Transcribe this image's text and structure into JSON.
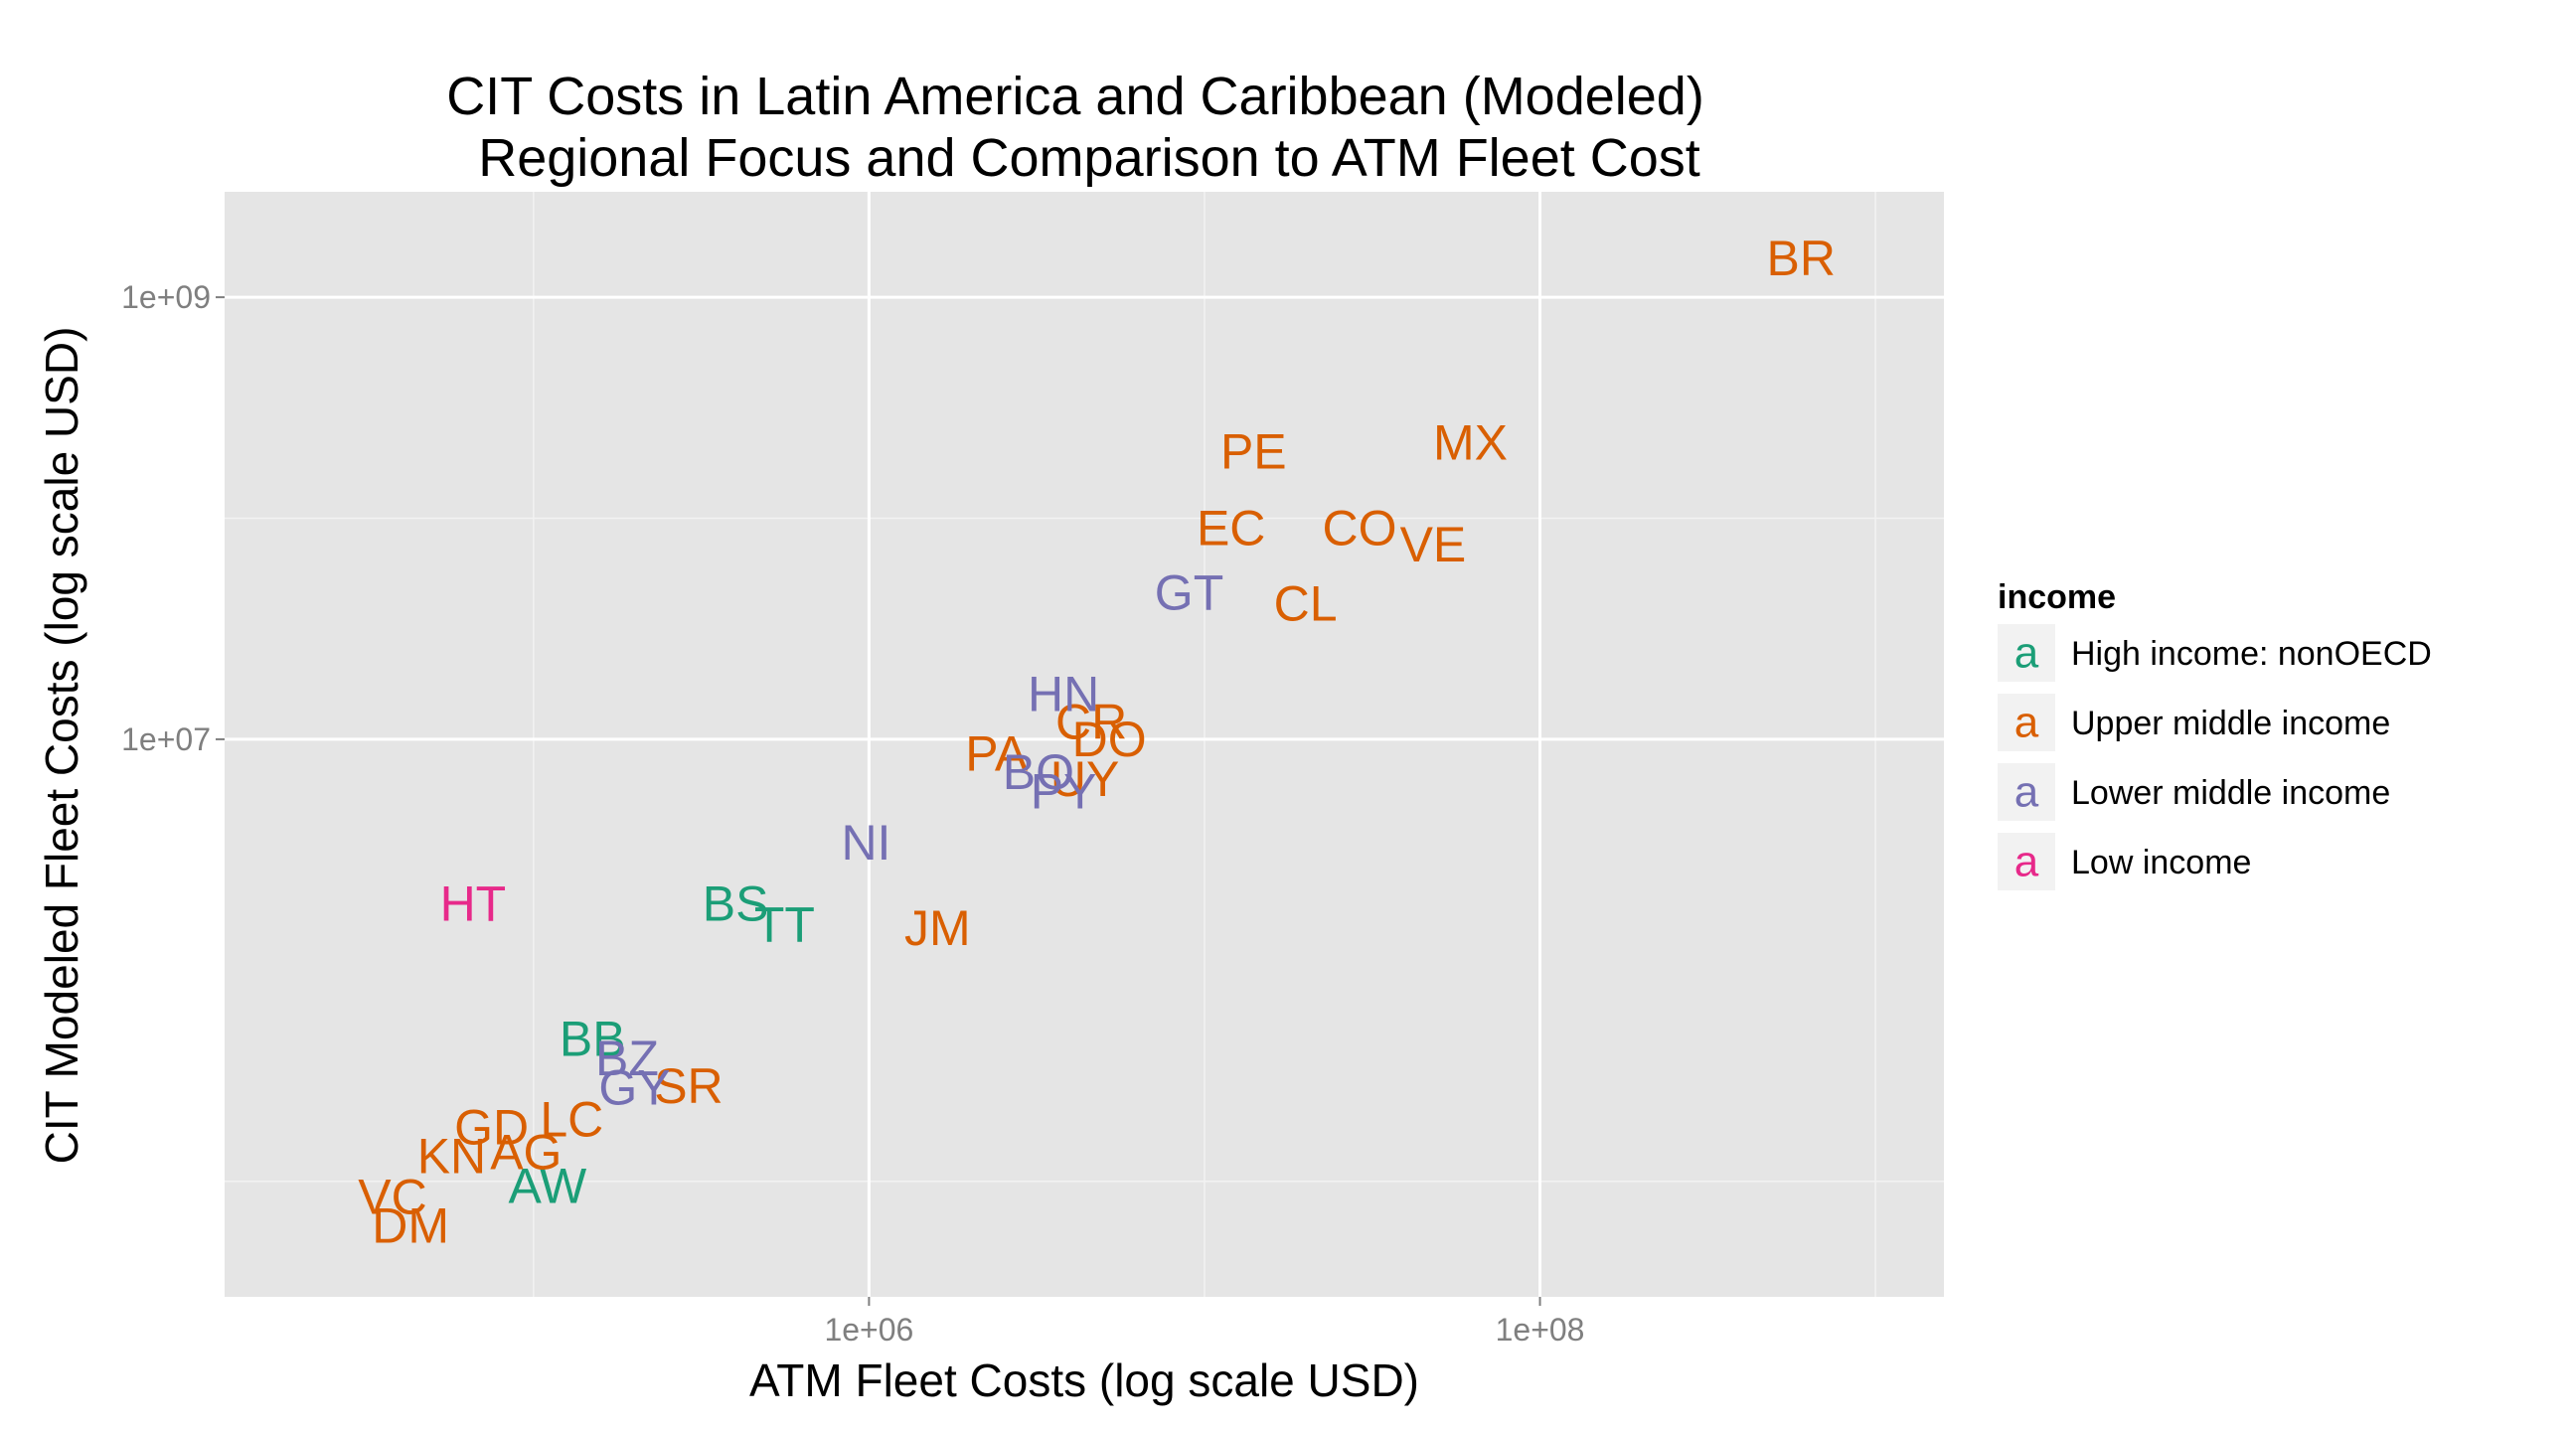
{
  "chart_data": {
    "type": "scatter",
    "title": "CIT Costs in Latin America and Caribbean (Modeled)",
    "subtitle": "Regional Focus and Comparison to ATM Fleet Cost",
    "xlabel": "ATM Fleet Costs (log scale USD)",
    "ylabel": "CIT Modeled Fleet Costs (log scale USD)",
    "x_scale": "log10",
    "y_scale": "log10",
    "xlim": [
      12000,
      1600000000
    ],
    "ylim": [
      30000,
      3000000000
    ],
    "x_ticks": [
      {
        "value": 1000000,
        "label": "1e+06"
      },
      {
        "value": 100000000,
        "label": "1e+08"
      }
    ],
    "y_ticks": [
      {
        "value": 10000000,
        "label": "1e+07"
      },
      {
        "value": 1000000000,
        "label": "1e+09"
      }
    ],
    "x_minor_gridlines": [
      100000,
      10000000,
      1000000000
    ],
    "y_minor_gridlines": [
      100000,
      100000000
    ],
    "grid": true,
    "legend": {
      "title": "income",
      "placement": "right",
      "key_glyph": "a",
      "entries": [
        {
          "label": "High income: nonOECD",
          "color": "#1B9E77"
        },
        {
          "label": "Upper middle income",
          "color": "#D95F02"
        },
        {
          "label": "Lower middle income",
          "color": "#7570B3"
        },
        {
          "label": "Low income",
          "color": "#E7298A"
        }
      ]
    },
    "series": [
      {
        "name": "High income: nonOECD",
        "color": "#1B9E77",
        "points": [
          {
            "label": "BS",
            "x": 400000,
            "y": 1800000
          },
          {
            "label": "TT",
            "x": 560000,
            "y": 1450000
          },
          {
            "label": "BB",
            "x": 150000,
            "y": 440000
          },
          {
            "label": "AW",
            "x": 110000,
            "y": 95000
          }
        ]
      },
      {
        "name": "Upper middle income",
        "color": "#D95F02",
        "points": [
          {
            "label": "BR",
            "x": 600000000,
            "y": 1500000000
          },
          {
            "label": "MX",
            "x": 62000000,
            "y": 220000000
          },
          {
            "label": "PE",
            "x": 14000000,
            "y": 200000000
          },
          {
            "label": "EC",
            "x": 12000000,
            "y": 90000000
          },
          {
            "label": "CO",
            "x": 29000000,
            "y": 90000000
          },
          {
            "label": "VE",
            "x": 48000000,
            "y": 76000000
          },
          {
            "label": "CL",
            "x": 20000000,
            "y": 41000000
          },
          {
            "label": "CR",
            "x": 4600000,
            "y": 12000000
          },
          {
            "label": "DO",
            "x": 5200000,
            "y": 10000000
          },
          {
            "label": "PA",
            "x": 2400000,
            "y": 8600000
          },
          {
            "label": "UY",
            "x": 4400000,
            "y": 6600000
          },
          {
            "label": "JM",
            "x": 1600000,
            "y": 1400000
          },
          {
            "label": "SR",
            "x": 290000,
            "y": 270000
          },
          {
            "label": "LC",
            "x": 130000,
            "y": 190000
          },
          {
            "label": "GD",
            "x": 75000,
            "y": 175000
          },
          {
            "label": "AG",
            "x": 95000,
            "y": 135000
          },
          {
            "label": "KN",
            "x": 57000,
            "y": 130000
          },
          {
            "label": "VC",
            "x": 38000,
            "y": 85000
          },
          {
            "label": "DM",
            "x": 43000,
            "y": 63000
          }
        ]
      },
      {
        "name": "Lower middle income",
        "color": "#7570B3",
        "points": [
          {
            "label": "GT",
            "x": 9000000,
            "y": 46000000
          },
          {
            "label": "HN",
            "x": 3800000,
            "y": 16000000
          },
          {
            "label": "BO",
            "x": 3200000,
            "y": 7100000
          },
          {
            "label": "PY",
            "x": 3800000,
            "y": 5800000
          },
          {
            "label": "NI",
            "x": 980000,
            "y": 3400000
          },
          {
            "label": "BZ",
            "x": 190000,
            "y": 360000
          },
          {
            "label": "GY",
            "x": 200000,
            "y": 265000
          }
        ]
      },
      {
        "name": "Low income",
        "color": "#E7298A",
        "points": [
          {
            "label": "HT",
            "x": 66000,
            "y": 1800000
          }
        ]
      }
    ]
  }
}
